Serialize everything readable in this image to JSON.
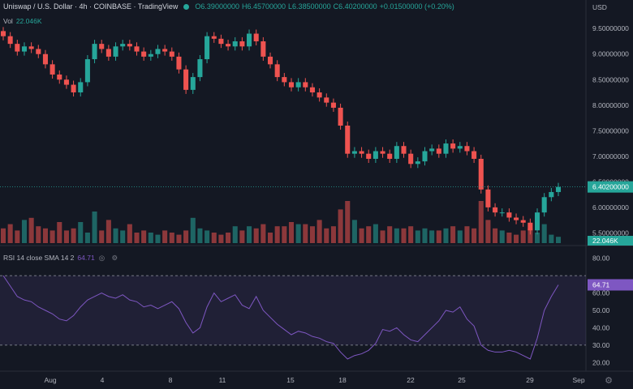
{
  "header": {
    "symbol": "Uniswap / U.S. Dollar · 4h · COINBASE · TradingView",
    "open": "O6.39000000",
    "high": "H6.45700000",
    "low": "L6.38500000",
    "close": "C6.40200000",
    "change": "+0.01500000 (+0.20%)"
  },
  "volume_label": {
    "name": "Vol",
    "value": "22.046K"
  },
  "rsi_label": {
    "name": "RSI 14 close SMA 14 2",
    "value": "64.71",
    "icons": "◎ ⚙"
  },
  "price_scale": {
    "currency": "USD",
    "current_price": "6.40200000",
    "volume_tag": "22.046K",
    "rsi_tag": "64.71"
  },
  "rsi_scale": [
    "80.00",
    "60.00",
    "50.00",
    "40.00",
    "30.00",
    "20.00"
  ],
  "colors": {
    "up": "#26a69a",
    "down": "#ef5350",
    "rsi": "#7e57c2",
    "background": "#141823"
  },
  "chart_data": [
    {
      "type": "candlestick",
      "title": "Uniswap / U.S. Dollar · 4h · COINBASE",
      "ylabel": "USD",
      "y_ticks": [
        9.5,
        9.0,
        8.5,
        8.0,
        7.5,
        7.0,
        6.5,
        6.0,
        5.5
      ],
      "y_tick_labels": [
        "9.50000000",
        "9.00000000",
        "8.50000000",
        "8.00000000",
        "7.50000000",
        "7.00000000",
        "6.50000000",
        "6.00000000",
        "5.50000000"
      ],
      "ylim": [
        5.3,
        9.9
      ],
      "x_tick_labels": [
        "Aug",
        "4",
        "8",
        "11",
        "15",
        "18",
        "22",
        "25",
        "29",
        "Sep"
      ],
      "close_series": [
        9.35,
        9.2,
        9.05,
        9.15,
        9.1,
        9.0,
        8.8,
        8.6,
        8.5,
        8.4,
        8.25,
        8.45,
        8.9,
        9.2,
        9.1,
        8.95,
        9.15,
        9.2,
        9.15,
        9.05,
        8.95,
        9.0,
        9.1,
        9.05,
        8.95,
        8.7,
        8.3,
        8.55,
        8.9,
        9.35,
        9.3,
        9.2,
        9.15,
        9.25,
        9.15,
        9.4,
        9.25,
        8.95,
        8.8,
        8.55,
        8.45,
        8.35,
        8.45,
        8.35,
        8.25,
        8.15,
        8.05,
        7.95,
        7.6,
        7.05,
        7.1,
        7.05,
        6.95,
        7.1,
        7.05,
        6.95,
        7.2,
        7.05,
        6.85,
        6.9,
        7.1,
        7.15,
        7.05,
        7.25,
        7.15,
        7.2,
        7.1,
        6.95,
        6.35,
        6.0,
        5.9,
        5.9,
        5.8,
        5.75,
        5.7,
        5.55,
        5.9,
        6.2,
        6.3,
        6.4
      ]
    },
    {
      "type": "bar",
      "title": "Vol",
      "values": [
        0.35,
        0.45,
        0.3,
        0.55,
        0.6,
        0.4,
        0.35,
        0.3,
        0.5,
        0.3,
        0.35,
        0.5,
        0.25,
        0.75,
        0.3,
        0.55,
        0.35,
        0.3,
        0.45,
        0.25,
        0.3,
        0.25,
        0.2,
        0.3,
        0.25,
        0.2,
        0.3,
        0.6,
        0.35,
        0.3,
        0.25,
        0.2,
        0.25,
        0.4,
        0.3,
        0.4,
        0.35,
        0.45,
        0.25,
        0.4,
        0.4,
        0.5,
        0.45,
        0.45,
        0.4,
        0.55,
        0.35,
        0.4,
        0.8,
        1.0,
        0.55,
        0.35,
        0.4,
        0.45,
        0.3,
        0.4,
        0.35,
        0.35,
        0.4,
        0.3,
        0.35,
        0.3,
        0.3,
        0.35,
        0.4,
        0.3,
        0.4,
        0.35,
        1.0,
        0.55,
        0.35,
        0.3,
        0.25,
        0.2,
        0.3,
        0.35,
        0.25,
        0.45,
        0.2,
        0.15
      ]
    },
    {
      "type": "line",
      "title": "RSI 14 close SMA 14 2",
      "y_ticks": [
        80,
        60,
        50,
        40,
        30,
        20
      ],
      "ylim": [
        15,
        85
      ],
      "bands": [
        30,
        70
      ],
      "values": [
        70,
        64,
        58,
        56,
        55,
        52,
        50,
        48,
        45,
        44,
        47,
        52,
        56,
        58,
        60,
        58,
        57,
        59,
        56,
        55,
        52,
        53,
        51,
        53,
        55,
        51,
        43,
        37,
        40,
        52,
        60,
        55,
        57,
        59,
        53,
        51,
        58,
        50,
        46,
        42,
        39,
        36,
        38,
        37,
        35,
        34,
        32,
        31,
        26,
        22,
        24,
        25,
        27,
        31,
        39,
        38,
        40,
        36,
        33,
        32,
        36,
        40,
        44,
        50,
        49,
        52,
        45,
        41,
        30,
        27,
        26,
        26,
        27,
        26,
        24,
        22,
        34,
        50,
        58,
        64.71
      ]
    }
  ]
}
